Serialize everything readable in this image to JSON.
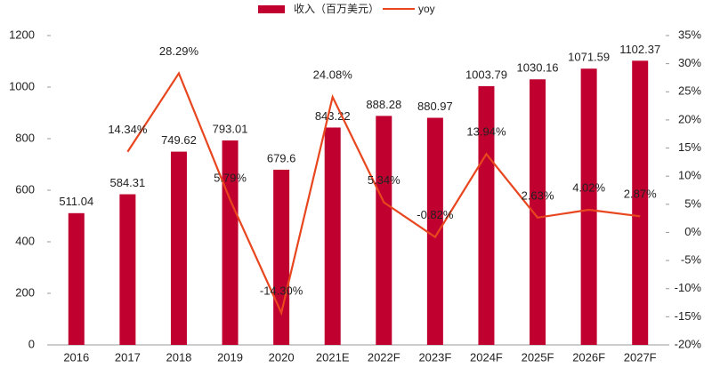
{
  "chart_data": {
    "type": "bar-line",
    "categories": [
      "2016",
      "2017",
      "2018",
      "2019",
      "2020",
      "2021E",
      "2022F",
      "2023F",
      "2024F",
      "2025F",
      "2026F",
      "2027F"
    ],
    "series": [
      {
        "name": "收入（百万美元）",
        "type": "bar",
        "color": "#c0002f",
        "values": [
          511.04,
          584.31,
          749.62,
          793.01,
          679.6,
          843.22,
          888.28,
          880.97,
          1003.79,
          1030.16,
          1071.59,
          1102.37
        ]
      },
      {
        "name": "yoy",
        "type": "line",
        "axis": "y2",
        "color": "#e8461e",
        "values": [
          null,
          14.34,
          28.29,
          5.79,
          -14.3,
          24.08,
          5.34,
          -0.82,
          13.94,
          2.63,
          4.02,
          2.87
        ],
        "value_labels": [
          null,
          "14.34%",
          "28.29%",
          "5.79%",
          "-14.30%",
          "24.08%",
          "5.34%",
          "-0.82%",
          "13.94%",
          "2.63%",
          "4.02%",
          "2.87%"
        ]
      }
    ],
    "ylim": [
      0,
      1200
    ],
    "yticks": [
      0,
      200,
      400,
      600,
      800,
      1000,
      1200
    ],
    "y2lim": [
      -20,
      35
    ],
    "y2ticks": [
      {
        "value": -20,
        "label": "-20%"
      },
      {
        "value": -15,
        "label": "-15%"
      },
      {
        "value": -10,
        "label": "-10%"
      },
      {
        "value": -5,
        "label": "-5%"
      },
      {
        "value": 0,
        "label": "0%"
      },
      {
        "value": 5,
        "label": "5%"
      },
      {
        "value": 10,
        "label": "10%"
      },
      {
        "value": 15,
        "label": "15%"
      },
      {
        "value": 20,
        "label": "20%"
      },
      {
        "value": 25,
        "label": "25%"
      },
      {
        "value": 30,
        "label": "30%"
      },
      {
        "value": 35,
        "label": "35%"
      }
    ],
    "legend": "top"
  }
}
